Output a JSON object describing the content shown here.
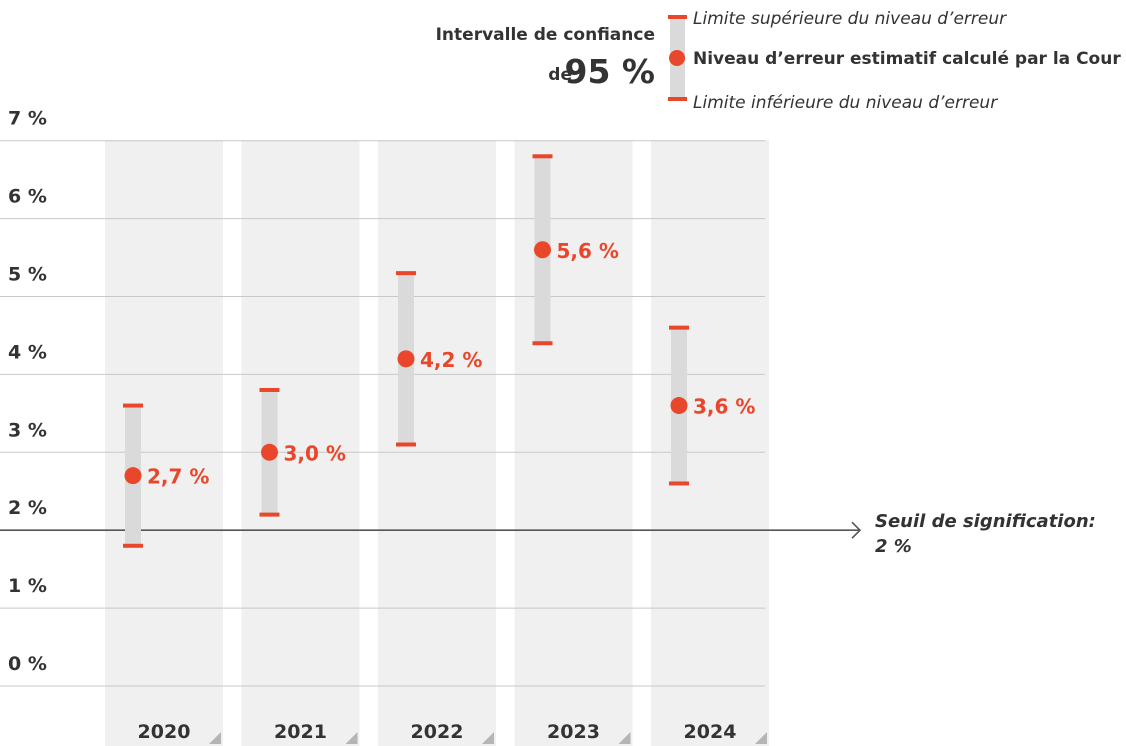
{
  "legend": {
    "title_line1": "Intervalle de confiance",
    "title_prefix": "de",
    "title_value": "95 %",
    "upper_label": "Limite supérieure du niveau d’erreur",
    "estimate_label": "Niveau d’erreur estimatif calculé par la Cour",
    "lower_label": "Limite inférieure du niveau d’erreur"
  },
  "threshold": {
    "value": 2,
    "label_line1": "Seuil de signification:",
    "label_line2": "2 %"
  },
  "colors": {
    "accent": "#e8472b",
    "column_bg": "#f0f0f0",
    "interval_bar": "#dadada",
    "text": "#333333",
    "gridline": "#c8c8c8",
    "threshold_line": "#555555"
  },
  "chart_data": {
    "type": "scatter",
    "categories": [
      "2020",
      "2021",
      "2022",
      "2023",
      "2024"
    ],
    "series": [
      {
        "values": [
          2.7,
          3.0,
          4.2,
          5.6,
          3.6
        ],
        "labels": [
          "2,7 %",
          "3,0 %",
          "4,2 %",
          "5,6 %",
          "3,6 %"
        ],
        "upper": [
          3.6,
          3.8,
          5.3,
          6.8,
          4.6
        ],
        "lower": [
          1.8,
          2.2,
          3.1,
          4.4,
          2.6
        ]
      }
    ],
    "ylim": [
      0,
      7
    ],
    "yticks": [
      0,
      1,
      2,
      3,
      4,
      5,
      6,
      7
    ],
    "ytick_labels": [
      "0 %",
      "1 %",
      "2 %",
      "3 %",
      "4 %",
      "5 %",
      "6 %",
      "7 %"
    ],
    "grid": true
  }
}
